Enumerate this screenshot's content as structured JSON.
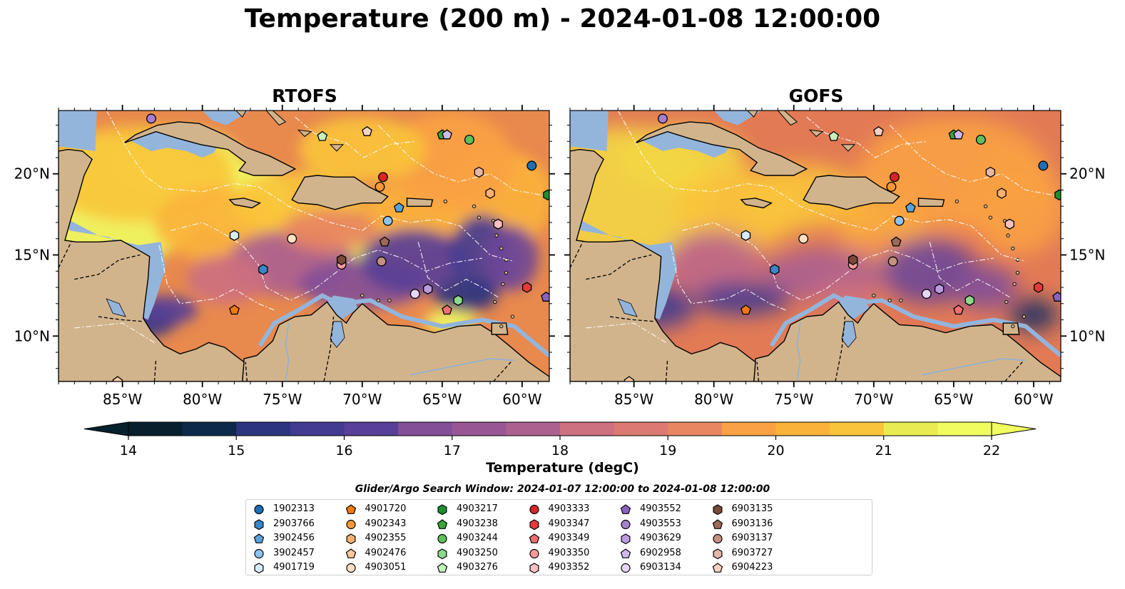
{
  "title": "Temperature (200 m) - 2024-01-08 12:00:00",
  "panels": [
    {
      "title": "RTOFS"
    },
    {
      "title": "GOFS"
    }
  ],
  "axes": {
    "lon_ticks": [
      "85°W",
      "80°W",
      "75°W",
      "70°W",
      "65°W",
      "60°W"
    ],
    "lon_values": [
      -85,
      -80,
      -75,
      -70,
      -65,
      -60
    ],
    "lat_ticks": [
      "20°N",
      "15°N",
      "10°N"
    ],
    "lat_values": [
      20,
      15,
      10
    ],
    "lon_range": [
      -89,
      -58.3
    ],
    "lat_range": [
      7.2,
      23.9
    ]
  },
  "colorbar": {
    "label": "Temperature (degC)",
    "ticks": [
      "14",
      "15",
      "16",
      "17",
      "18",
      "19",
      "20",
      "21",
      "22"
    ],
    "range": [
      14,
      22
    ],
    "extend": "both",
    "colors": [
      "#06202e",
      "#0e2a4a",
      "#1d3065",
      "#2e3580",
      "#433a91",
      "#583f97",
      "#6d4698",
      "#834f97",
      "#985794",
      "#ab6090",
      "#bd688a",
      "#cd7080",
      "#db7a72",
      "#e88662",
      "#f39352",
      "#f9a144",
      "#fbb23b",
      "#f9c43a",
      "#f3d742",
      "#e9ec50",
      "#f0fc60"
    ]
  },
  "map_colors": {
    "land": "#d2b48c",
    "shelf": "#93b5dc",
    "deep_pacific": "#0d2a40"
  },
  "legend": {
    "title": "Glider/Argo Search Window: 2024-01-07 12:00:00 to 2024-01-08 12:00:00",
    "items": [
      {
        "id": "1902313",
        "marker": "circle",
        "color": "#1f6fb4"
      },
      {
        "id": "2903766",
        "marker": "hexagon",
        "color": "#3a87c8"
      },
      {
        "id": "3902456",
        "marker": "pentagon",
        "color": "#5aa2dc"
      },
      {
        "id": "3902457",
        "marker": "circle",
        "color": "#8cc3ef"
      },
      {
        "id": "4901719",
        "marker": "hexagon",
        "color": "#d4ebfb"
      },
      {
        "id": "4901720",
        "marker": "pentagon",
        "color": "#f27a12"
      },
      {
        "id": "4902343",
        "marker": "circle",
        "color": "#f79838"
      },
      {
        "id": "4902355",
        "marker": "hexagon",
        "color": "#f9b070"
      },
      {
        "id": "4902476",
        "marker": "pentagon",
        "color": "#fbc79b"
      },
      {
        "id": "4903051",
        "marker": "circle",
        "color": "#fde0c2"
      },
      {
        "id": "4903217",
        "marker": "hexagon",
        "color": "#1e8f2e"
      },
      {
        "id": "4903238",
        "marker": "pentagon",
        "color": "#3aa43c"
      },
      {
        "id": "4903244",
        "marker": "circle",
        "color": "#5fbf5a"
      },
      {
        "id": "4903250",
        "marker": "hexagon",
        "color": "#8fd98a"
      },
      {
        "id": "4903276",
        "marker": "pentagon",
        "color": "#c5f0c0"
      },
      {
        "id": "4903333",
        "marker": "circle",
        "color": "#d62728"
      },
      {
        "id": "4903347",
        "marker": "hexagon",
        "color": "#e23b3b"
      },
      {
        "id": "4903349",
        "marker": "pentagon",
        "color": "#ee7070"
      },
      {
        "id": "4903350",
        "marker": "circle",
        "color": "#f59a9a"
      },
      {
        "id": "4903352",
        "marker": "hexagon",
        "color": "#f8c0c0"
      },
      {
        "id": "4903552",
        "marker": "pentagon",
        "color": "#8a62c0"
      },
      {
        "id": "4903553",
        "marker": "circle",
        "color": "#a57fd0"
      },
      {
        "id": "4903629",
        "marker": "hexagon",
        "color": "#bc9be0"
      },
      {
        "id": "6902958",
        "marker": "pentagon",
        "color": "#d1b8ee"
      },
      {
        "id": "6903134",
        "marker": "circle",
        "color": "#e6d6f8"
      },
      {
        "id": "6903135",
        "marker": "hexagon",
        "color": "#7a4a38"
      },
      {
        "id": "6903136",
        "marker": "pentagon",
        "color": "#9c6a58"
      },
      {
        "id": "6903137",
        "marker": "circle",
        "color": "#c49080"
      },
      {
        "id": "6903727",
        "marker": "hexagon",
        "color": "#e6b8a8"
      },
      {
        "id": "6904223",
        "marker": "pentagon",
        "color": "#f4d2c4"
      }
    ]
  },
  "chart_data": {
    "type": "scatter",
    "title": "Temperature (200 m) - 2024-01-08 12:00:00",
    "panel_titles": [
      "RTOFS",
      "GOFS"
    ],
    "xlabel": "",
    "ylabel": "",
    "xlim": [
      -89,
      -58.3
    ],
    "ylim": [
      7.2,
      23.9
    ],
    "colorbar_range": [
      14,
      22
    ],
    "points": [
      {
        "id": "1902313",
        "lon": -59.4,
        "lat": 20.5
      },
      {
        "id": "2903766",
        "lon": -76.2,
        "lat": 14.1
      },
      {
        "id": "3902456",
        "lon": -67.7,
        "lat": 17.9
      },
      {
        "id": "3902457",
        "lon": -68.4,
        "lat": 17.1
      },
      {
        "id": "4901719",
        "lon": -78.0,
        "lat": 16.2
      },
      {
        "id": "4901720",
        "lon": -78.0,
        "lat": 11.6
      },
      {
        "id": "4902343",
        "lon": -68.9,
        "lat": 19.2
      },
      {
        "id": "4902355",
        "lon": -62.0,
        "lat": 18.8
      },
      {
        "id": "4902476",
        "lon": -85.3,
        "lat": 7.2
      },
      {
        "id": "4903051",
        "lon": -74.4,
        "lat": 16.0
      },
      {
        "id": "4903217",
        "lon": -58.4,
        "lat": 18.7
      },
      {
        "id": "4903238",
        "lon": -65.0,
        "lat": 22.4
      },
      {
        "id": "4903244",
        "lon": -63.3,
        "lat": 22.1
      },
      {
        "id": "4903250",
        "lon": -64.0,
        "lat": 12.2
      },
      {
        "id": "4903276",
        "lon": -72.5,
        "lat": 22.3
      },
      {
        "id": "4903333",
        "lon": -68.7,
        "lat": 19.8
      },
      {
        "id": "4903347",
        "lon": -59.7,
        "lat": 13.0
      },
      {
        "id": "4903349",
        "lon": -64.7,
        "lat": 11.6
      },
      {
        "id": "4903350",
        "lon": -71.3,
        "lat": 14.4
      },
      {
        "id": "4903352",
        "lon": -61.5,
        "lat": 16.9
      },
      {
        "id": "4903552",
        "lon": -58.5,
        "lat": 12.4
      },
      {
        "id": "4903553",
        "lon": -83.2,
        "lat": 23.4
      },
      {
        "id": "4903629",
        "lon": -65.9,
        "lat": 12.9
      },
      {
        "id": "6902958",
        "lon": -64.7,
        "lat": 22.4
      },
      {
        "id": "6903134",
        "lon": -66.7,
        "lat": 12.6
      },
      {
        "id": "6903135",
        "lon": -71.3,
        "lat": 14.7
      },
      {
        "id": "6903136",
        "lon": -68.6,
        "lat": 15.8
      },
      {
        "id": "6903137",
        "lon": -68.8,
        "lat": 14.6
      },
      {
        "id": "6903727",
        "lon": -62.7,
        "lat": 20.1
      },
      {
        "id": "6904223",
        "lon": -69.7,
        "lat": 22.6
      }
    ]
  }
}
